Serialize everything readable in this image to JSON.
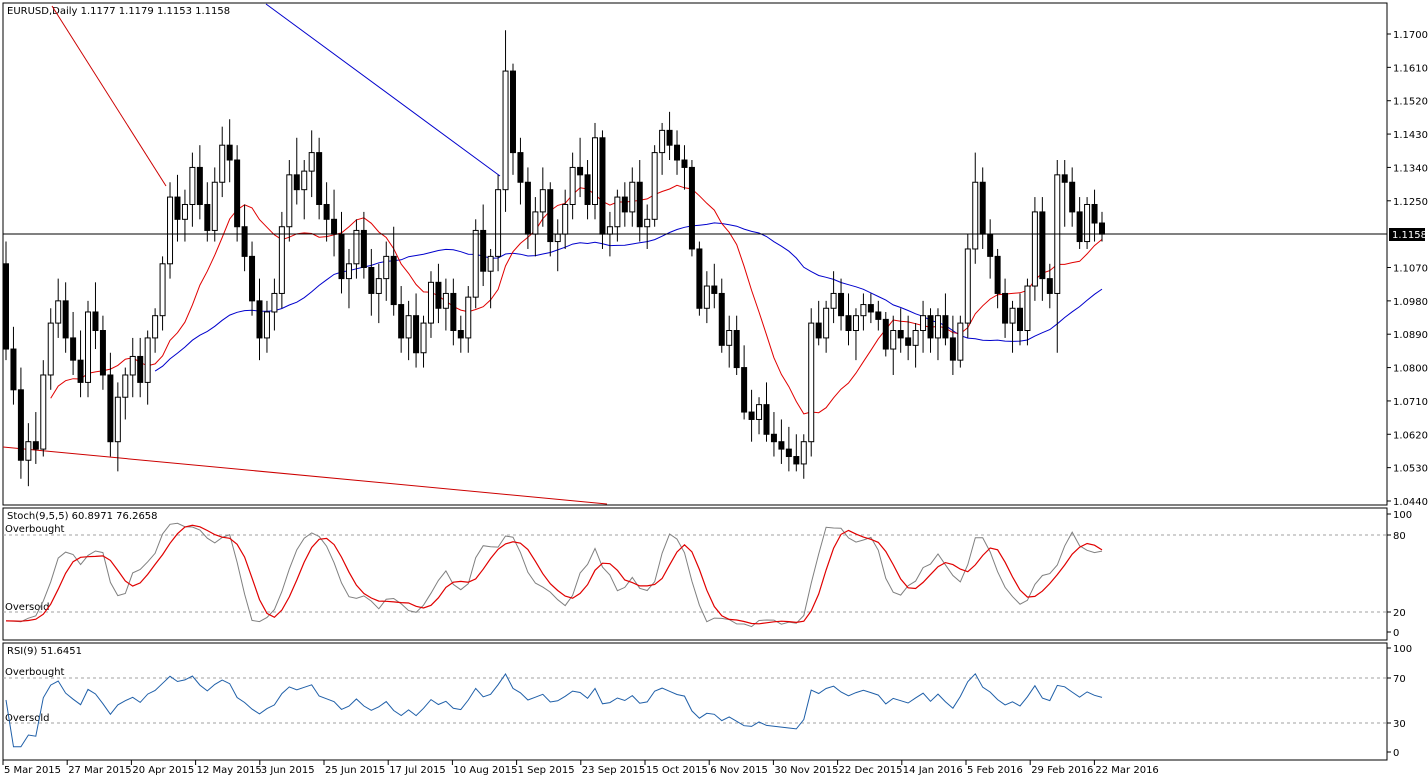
{
  "colors": {
    "background": "#ffffff",
    "candle": "#000000",
    "ma_slow": "#0000cc",
    "ma_fast": "#e00000",
    "trend": "#cc0000",
    "stoch_main": "#808080",
    "stoch_signal": "#e00000",
    "rsi": "#1f5fa8",
    "level": "#a0a0a0",
    "price_label_bg": "#000000",
    "price_label_text": "#ffffff"
  },
  "main_panel": {
    "header": "EURUSD,Daily  1.1177 1.1179 1.1153 1.1158",
    "current_price": "1.1158",
    "price_ticks": [
      "1.1700",
      "1.1610",
      "1.1520",
      "1.1430",
      "1.1340",
      "1.1250",
      "1.1158",
      "1.1070",
      "1.0980",
      "1.0890",
      "1.0800",
      "1.0710",
      "1.0620",
      "1.0530",
      "1.0440"
    ],
    "date_ticks": [
      "5 Mar 2015",
      "27 Mar 2015",
      "20 Apr 2015",
      "12 May 2015",
      "3 Jun 2015",
      "25 Jun 2015",
      "17 Jul 2015",
      "10 Aug 2015",
      "1 Sep 2015",
      "23 Sep 2015",
      "15 Oct 2015",
      "6 Nov 2015",
      "30 Nov 2015",
      "22 Dec 2015",
      "14 Jan 2016",
      "5 Feb 2016",
      "29 Feb 2016",
      "22 Mar 2016"
    ]
  },
  "stoch_panel": {
    "header": "Stoch(9,5,5) 60.8971 76.2658",
    "overbought_label": "Overbought",
    "oversold_label": "Oversold",
    "ticks": [
      "100",
      "80",
      "20",
      "0"
    ]
  },
  "rsi_panel": {
    "header": "RSI(9) 51.6451",
    "overbought_label": "Overbought",
    "oversold_label": "Oversold",
    "ticks": [
      "100",
      "70",
      "30",
      "0"
    ]
  },
  "chart_data": {
    "type": "candlestick",
    "symbol": "EURUSD",
    "timeframe": "Daily",
    "ohlc_last": {
      "open": 1.1177,
      "high": 1.1179,
      "low": 1.1153,
      "close": 1.1158
    },
    "ylim": [
      1.044,
      1.17
    ],
    "close_series": [
      {
        "date": "5 Mar 2015",
        "close": 1.105
      },
      {
        "date": "27 Mar 2015",
        "close": 1.088
      },
      {
        "date": "20 Apr 2015",
        "close": 1.075
      },
      {
        "date": "12 May 2015",
        "close": 1.127
      },
      {
        "date": "3 Jun 2015",
        "close": 1.113
      },
      {
        "date": "25 Jun 2015",
        "close": 1.12
      },
      {
        "date": "17 Jul 2015",
        "close": 1.087
      },
      {
        "date": "10 Aug 2015",
        "close": 1.1
      },
      {
        "date": "1 Sep 2015",
        "close": 1.132
      },
      {
        "date": "23 Sep 2015",
        "close": 1.118
      },
      {
        "date": "15 Oct 2015",
        "close": 1.137
      },
      {
        "date": "6 Nov 2015",
        "close": 1.076
      },
      {
        "date": "30 Nov 2015",
        "close": 1.059
      },
      {
        "date": "22 Dec 2015",
        "close": 1.094
      },
      {
        "date": "14 Jan 2016",
        "close": 1.088
      },
      {
        "date": "5 Feb 2016",
        "close": 1.121
      },
      {
        "date": "29 Feb 2016",
        "close": 1.089
      },
      {
        "date": "22 Mar 2016",
        "close": 1.122
      }
    ],
    "candles": [
      [
        1.108,
        1.114,
        1.082,
        1.085
      ],
      [
        1.085,
        1.091,
        1.07,
        1.074
      ],
      [
        1.074,
        1.08,
        1.05,
        1.055
      ],
      [
        1.055,
        1.065,
        1.048,
        1.06
      ],
      [
        1.06,
        1.068,
        1.054,
        1.058
      ],
      [
        1.058,
        1.082,
        1.056,
        1.078
      ],
      [
        1.078,
        1.096,
        1.074,
        1.092
      ],
      [
        1.092,
        1.104,
        1.088,
        1.098
      ],
      [
        1.098,
        1.103,
        1.084,
        1.088
      ],
      [
        1.088,
        1.095,
        1.078,
        1.082
      ],
      [
        1.082,
        1.09,
        1.072,
        1.076
      ],
      [
        1.076,
        1.098,
        1.072,
        1.095
      ],
      [
        1.095,
        1.103,
        1.085,
        1.09
      ],
      [
        1.09,
        1.094,
        1.074,
        1.078
      ],
      [
        1.078,
        1.084,
        1.056,
        1.06
      ],
      [
        1.06,
        1.076,
        1.052,
        1.072
      ],
      [
        1.072,
        1.08,
        1.066,
        1.078
      ],
      [
        1.078,
        1.088,
        1.072,
        1.083
      ],
      [
        1.083,
        1.088,
        1.072,
        1.076
      ],
      [
        1.076,
        1.09,
        1.07,
        1.088
      ],
      [
        1.088,
        1.096,
        1.084,
        1.094
      ],
      [
        1.094,
        1.11,
        1.09,
        1.108
      ],
      [
        1.108,
        1.13,
        1.104,
        1.126
      ],
      [
        1.126,
        1.132,
        1.114,
        1.12
      ],
      [
        1.12,
        1.128,
        1.114,
        1.124
      ],
      [
        1.124,
        1.138,
        1.118,
        1.134
      ],
      [
        1.134,
        1.14,
        1.12,
        1.124
      ],
      [
        1.124,
        1.13,
        1.114,
        1.117
      ],
      [
        1.117,
        1.134,
        1.114,
        1.13
      ],
      [
        1.13,
        1.145,
        1.126,
        1.14
      ],
      [
        1.14,
        1.147,
        1.13,
        1.136
      ],
      [
        1.136,
        1.14,
        1.114,
        1.118
      ],
      [
        1.118,
        1.124,
        1.106,
        1.11
      ],
      [
        1.11,
        1.114,
        1.094,
        1.098
      ],
      [
        1.098,
        1.104,
        1.082,
        1.088
      ],
      [
        1.088,
        1.098,
        1.084,
        1.095
      ],
      [
        1.095,
        1.104,
        1.09,
        1.1
      ],
      [
        1.1,
        1.122,
        1.096,
        1.118
      ],
      [
        1.118,
        1.136,
        1.114,
        1.132
      ],
      [
        1.132,
        1.142,
        1.124,
        1.128
      ],
      [
        1.128,
        1.136,
        1.12,
        1.133
      ],
      [
        1.133,
        1.144,
        1.126,
        1.138
      ],
      [
        1.138,
        1.142,
        1.12,
        1.124
      ],
      [
        1.124,
        1.13,
        1.114,
        1.12
      ],
      [
        1.12,
        1.128,
        1.11,
        1.116
      ],
      [
        1.116,
        1.122,
        1.1,
        1.104
      ],
      [
        1.104,
        1.112,
        1.096,
        1.108
      ],
      [
        1.108,
        1.12,
        1.104,
        1.117
      ],
      [
        1.117,
        1.122,
        1.104,
        1.107
      ],
      [
        1.107,
        1.112,
        1.094,
        1.1
      ],
      [
        1.1,
        1.108,
        1.092,
        1.104
      ],
      [
        1.104,
        1.114,
        1.098,
        1.11
      ],
      [
        1.11,
        1.118,
        1.094,
        1.097
      ],
      [
        1.097,
        1.102,
        1.084,
        1.088
      ],
      [
        1.088,
        1.098,
        1.082,
        1.094
      ],
      [
        1.094,
        1.1,
        1.08,
        1.084
      ],
      [
        1.084,
        1.094,
        1.08,
        1.092
      ],
      [
        1.092,
        1.106,
        1.088,
        1.103
      ],
      [
        1.103,
        1.108,
        1.092,
        1.096
      ],
      [
        1.096,
        1.104,
        1.09,
        1.1
      ],
      [
        1.1,
        1.104,
        1.086,
        1.09
      ],
      [
        1.09,
        1.094,
        1.084,
        1.088
      ],
      [
        1.088,
        1.102,
        1.084,
        1.099
      ],
      [
        1.099,
        1.12,
        1.096,
        1.117
      ],
      [
        1.117,
        1.124,
        1.102,
        1.106
      ],
      [
        1.106,
        1.112,
        1.096,
        1.11
      ],
      [
        1.11,
        1.132,
        1.106,
        1.128
      ],
      [
        1.128,
        1.171,
        1.122,
        1.16
      ],
      [
        1.16,
        1.162,
        1.132,
        1.138
      ],
      [
        1.138,
        1.142,
        1.124,
        1.13
      ],
      [
        1.13,
        1.134,
        1.112,
        1.116
      ],
      [
        1.116,
        1.126,
        1.11,
        1.122
      ],
      [
        1.122,
        1.134,
        1.118,
        1.128
      ],
      [
        1.128,
        1.13,
        1.11,
        1.114
      ],
      [
        1.114,
        1.12,
        1.106,
        1.116
      ],
      [
        1.116,
        1.128,
        1.112,
        1.124
      ],
      [
        1.124,
        1.138,
        1.12,
        1.134
      ],
      [
        1.134,
        1.142,
        1.126,
        1.132
      ],
      [
        1.132,
        1.136,
        1.12,
        1.124
      ],
      [
        1.124,
        1.146,
        1.12,
        1.142
      ],
      [
        1.142,
        1.144,
        1.112,
        1.116
      ],
      [
        1.116,
        1.122,
        1.11,
        1.118
      ],
      [
        1.118,
        1.128,
        1.114,
        1.126
      ],
      [
        1.126,
        1.13,
        1.118,
        1.122
      ],
      [
        1.122,
        1.134,
        1.118,
        1.13
      ],
      [
        1.13,
        1.136,
        1.114,
        1.118
      ],
      [
        1.118,
        1.124,
        1.112,
        1.12
      ],
      [
        1.12,
        1.14,
        1.118,
        1.138
      ],
      [
        1.138,
        1.146,
        1.132,
        1.144
      ],
      [
        1.144,
        1.149,
        1.136,
        1.14
      ],
      [
        1.14,
        1.144,
        1.132,
        1.136
      ],
      [
        1.136,
        1.14,
        1.128,
        1.134
      ],
      [
        1.134,
        1.136,
        1.11,
        1.112
      ],
      [
        1.112,
        1.114,
        1.094,
        1.096
      ],
      [
        1.096,
        1.106,
        1.092,
        1.102
      ],
      [
        1.102,
        1.108,
        1.096,
        1.1
      ],
      [
        1.1,
        1.104,
        1.084,
        1.086
      ],
      [
        1.086,
        1.094,
        1.08,
        1.09
      ],
      [
        1.09,
        1.094,
        1.078,
        1.08
      ],
      [
        1.08,
        1.086,
        1.066,
        1.068
      ],
      [
        1.068,
        1.074,
        1.06,
        1.066
      ],
      [
        1.066,
        1.072,
        1.062,
        1.07
      ],
      [
        1.07,
        1.076,
        1.06,
        1.062
      ],
      [
        1.062,
        1.068,
        1.056,
        1.06
      ],
      [
        1.06,
        1.066,
        1.054,
        1.058
      ],
      [
        1.058,
        1.064,
        1.052,
        1.056
      ],
      [
        1.056,
        1.062,
        1.052,
        1.054
      ],
      [
        1.054,
        1.062,
        1.05,
        1.06
      ],
      [
        1.06,
        1.096,
        1.056,
        1.092
      ],
      [
        1.092,
        1.098,
        1.086,
        1.088
      ],
      [
        1.088,
        1.098,
        1.084,
        1.096
      ],
      [
        1.096,
        1.106,
        1.092,
        1.1
      ],
      [
        1.1,
        1.104,
        1.09,
        1.094
      ],
      [
        1.094,
        1.1,
        1.086,
        1.09
      ],
      [
        1.09,
        1.096,
        1.082,
        1.094
      ],
      [
        1.094,
        1.1,
        1.09,
        1.097
      ],
      [
        1.097,
        1.1,
        1.092,
        1.095
      ],
      [
        1.095,
        1.098,
        1.09,
        1.093
      ],
      [
        1.093,
        1.095,
        1.083,
        1.085
      ],
      [
        1.085,
        1.094,
        1.078,
        1.09
      ],
      [
        1.09,
        1.096,
        1.084,
        1.088
      ],
      [
        1.088,
        1.094,
        1.082,
        1.086
      ],
      [
        1.086,
        1.092,
        1.08,
        1.09
      ],
      [
        1.09,
        1.098,
        1.084,
        1.094
      ],
      [
        1.094,
        1.096,
        1.084,
        1.088
      ],
      [
        1.088,
        1.096,
        1.082,
        1.094
      ],
      [
        1.094,
        1.1,
        1.086,
        1.088
      ],
      [
        1.088,
        1.094,
        1.078,
        1.082
      ],
      [
        1.082,
        1.094,
        1.08,
        1.092
      ],
      [
        1.092,
        1.116,
        1.088,
        1.112
      ],
      [
        1.112,
        1.138,
        1.108,
        1.13
      ],
      [
        1.13,
        1.134,
        1.112,
        1.116
      ],
      [
        1.116,
        1.12,
        1.104,
        1.11
      ],
      [
        1.11,
        1.112,
        1.096,
        1.1
      ],
      [
        1.1,
        1.104,
        1.088,
        1.092
      ],
      [
        1.092,
        1.098,
        1.084,
        1.096
      ],
      [
        1.096,
        1.1,
        1.086,
        1.09
      ],
      [
        1.09,
        1.104,
        1.086,
        1.102
      ],
      [
        1.102,
        1.126,
        1.098,
        1.122
      ],
      [
        1.122,
        1.126,
        1.098,
        1.104
      ],
      [
        1.104,
        1.108,
        1.096,
        1.1
      ],
      [
        1.1,
        1.136,
        1.084,
        1.132
      ],
      [
        1.132,
        1.136,
        1.118,
        1.13
      ],
      [
        1.13,
        1.134,
        1.118,
        1.122
      ],
      [
        1.122,
        1.126,
        1.112,
        1.114
      ],
      [
        1.114,
        1.126,
        1.112,
        1.124
      ],
      [
        1.124,
        1.128,
        1.114,
        1.119
      ],
      [
        1.119,
        1.122,
        1.114,
        1.116
      ]
    ]
  }
}
